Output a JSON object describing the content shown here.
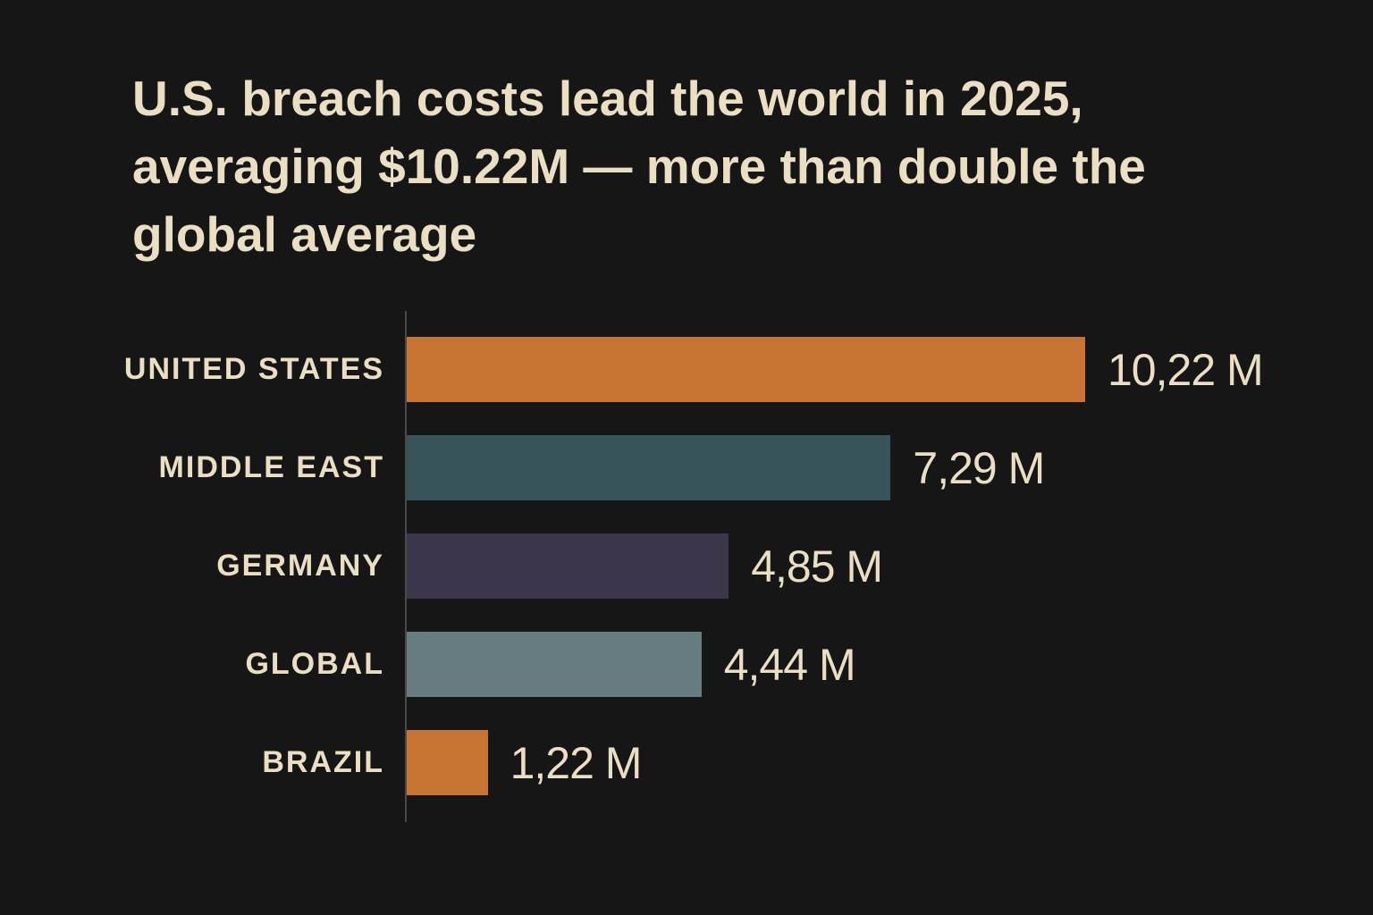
{
  "chart_data": {
    "type": "bar",
    "orientation": "horizontal",
    "title": "U.S. breach costs lead the world in 2025, averaging $10.22M — more than double the global average",
    "categories": [
      "UNITED STATES",
      "MIDDLE EAST",
      "GERMANY",
      "GLOBAL",
      "BRAZIL"
    ],
    "values": [
      10.22,
      7.29,
      4.85,
      4.44,
      1.22
    ],
    "data_labels": [
      "10,22 M",
      "7,29 M",
      "4,85 M",
      "4,44 M",
      "1,22 M"
    ],
    "colors": [
      "#c87533",
      "#36545a",
      "#3b3649",
      "#667c7e",
      "#c87533"
    ],
    "xlabel": "",
    "ylabel": "",
    "grid": false,
    "legend": "none",
    "background": "#161616",
    "text_color": "#ebdfc3"
  }
}
